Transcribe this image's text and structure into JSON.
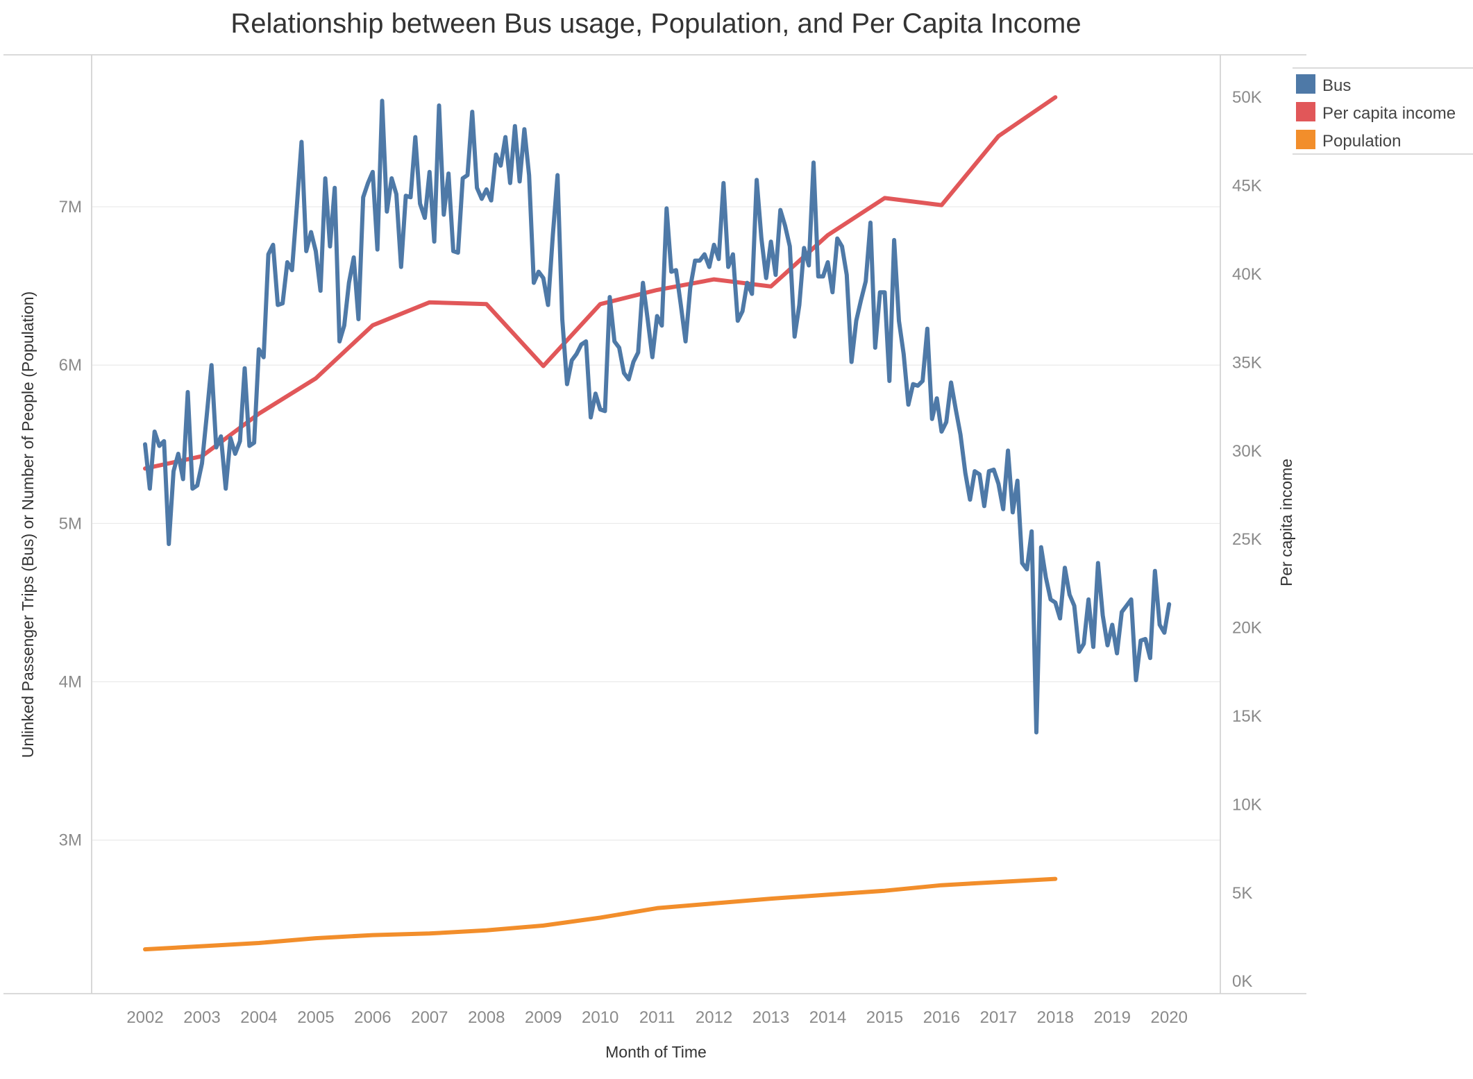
{
  "chart_data": {
    "type": "line",
    "title": "Relationship between Bus usage, Population, and Per Capita Income",
    "xlabel": "Month of Time",
    "ylabel": "Unlinked Passenger Trips (Bus) or Number of People (Population)",
    "ylabel_right": "Per capita income",
    "x_ticks": [
      "2002",
      "2003",
      "2004",
      "2005",
      "2006",
      "2007",
      "2008",
      "2009",
      "2010",
      "2011",
      "2012",
      "2013",
      "2014",
      "2015",
      "2016",
      "2017",
      "2018",
      "2019",
      "2020"
    ],
    "y_left_ticks": [
      {
        "value": 3000000,
        "label": "3M"
      },
      {
        "value": 4000000,
        "label": "4M"
      },
      {
        "value": 5000000,
        "label": "5M"
      },
      {
        "value": 6000000,
        "label": "6M"
      },
      {
        "value": 7000000,
        "label": "7M"
      }
    ],
    "y_right_ticks": [
      {
        "value": 0,
        "label": "0K"
      },
      {
        "value": 5000,
        "label": "5K"
      },
      {
        "value": 10000,
        "label": "10K"
      },
      {
        "value": 15000,
        "label": "15K"
      },
      {
        "value": 20000,
        "label": "20K"
      },
      {
        "value": 25000,
        "label": "25K"
      },
      {
        "value": 30000,
        "label": "30K"
      },
      {
        "value": 35000,
        "label": "35K"
      },
      {
        "value": 40000,
        "label": "40K"
      },
      {
        "value": 45000,
        "label": "45K"
      },
      {
        "value": 50000,
        "label": "50K"
      }
    ],
    "x_range": [
      2001.06,
      2020.9
    ],
    "y_left_range": [
      2030000,
      7960000
    ],
    "y_right_range": [
      -700,
      52400
    ],
    "grid": true,
    "legend_position": "top-right",
    "series": [
      {
        "name": "Bus",
        "axis": "left",
        "color": "#4e79a7",
        "x": [
          2002.0,
          2002.083,
          2002.167,
          2002.25,
          2002.333,
          2002.417,
          2002.5,
          2002.583,
          2002.667,
          2002.75,
          2002.833,
          2002.917,
          2003.0,
          2003.083,
          2003.167,
          2003.25,
          2003.333,
          2003.417,
          2003.5,
          2003.583,
          2003.667,
          2003.75,
          2003.833,
          2003.917,
          2004.0,
          2004.083,
          2004.167,
          2004.25,
          2004.333,
          2004.417,
          2004.5,
          2004.583,
          2004.667,
          2004.75,
          2004.833,
          2004.917,
          2005.0,
          2005.083,
          2005.167,
          2005.25,
          2005.333,
          2005.417,
          2005.5,
          2005.583,
          2005.667,
          2005.75,
          2005.833,
          2005.917,
          2006.0,
          2006.083,
          2006.167,
          2006.25,
          2006.333,
          2006.417,
          2006.5,
          2006.583,
          2006.667,
          2006.75,
          2006.833,
          2006.917,
          2007.0,
          2007.083,
          2007.167,
          2007.25,
          2007.333,
          2007.417,
          2007.5,
          2007.583,
          2007.667,
          2007.75,
          2007.833,
          2007.917,
          2008.0,
          2008.083,
          2008.167,
          2008.25,
          2008.333,
          2008.417,
          2008.5,
          2008.583,
          2008.667,
          2008.75,
          2008.833,
          2008.917,
          2009.0,
          2009.083,
          2009.167,
          2009.25,
          2009.333,
          2009.417,
          2009.5,
          2009.583,
          2009.667,
          2009.75,
          2009.833,
          2009.917,
          2010.0,
          2010.083,
          2010.167,
          2010.25,
          2010.333,
          2010.417,
          2010.5,
          2010.583,
          2010.667,
          2010.75,
          2010.833,
          2010.917,
          2011.0,
          2011.083,
          2011.167,
          2011.25,
          2011.333,
          2011.417,
          2011.5,
          2011.583,
          2011.667,
          2011.75,
          2011.833,
          2011.917,
          2012.0,
          2012.083,
          2012.167,
          2012.25,
          2012.333,
          2012.417,
          2012.5,
          2012.583,
          2012.667,
          2012.75,
          2012.833,
          2012.917,
          2013.0,
          2013.083,
          2013.167,
          2013.25,
          2013.333,
          2013.417,
          2013.5,
          2013.583,
          2013.667,
          2013.75,
          2013.833,
          2013.917,
          2014.0,
          2014.083,
          2014.167,
          2014.25,
          2014.333,
          2014.417,
          2014.5,
          2014.583,
          2014.667,
          2014.75,
          2014.833,
          2014.917,
          2015.0,
          2015.083,
          2015.167,
          2015.25,
          2015.333,
          2015.417,
          2015.5,
          2015.583,
          2015.667,
          2015.75,
          2015.833,
          2015.917,
          2016.0,
          2016.083,
          2016.167,
          2016.25,
          2016.333,
          2016.417,
          2016.5,
          2016.583,
          2016.667,
          2016.75,
          2016.833,
          2016.917,
          2017.0,
          2017.083,
          2017.167,
          2017.25,
          2017.333,
          2017.417,
          2017.5,
          2017.583,
          2017.667,
          2017.75,
          2017.833,
          2017.917,
          2018.0,
          2018.083,
          2018.167,
          2018.25,
          2018.333,
          2018.417,
          2018.5,
          2018.583,
          2018.667,
          2018.75,
          2018.833,
          2018.917,
          2019.0,
          2019.083,
          2019.167,
          2019.25,
          2019.333,
          2019.417,
          2019.5,
          2019.583,
          2019.667,
          2019.75,
          2019.833,
          2019.917,
          2020.0
        ],
        "values": [
          5500000,
          5220000,
          5580000,
          5490000,
          5520000,
          4870000,
          5330000,
          5440000,
          5280000,
          5830000,
          5220000,
          5240000,
          5380000,
          5680000,
          6000000,
          5480000,
          5550000,
          5220000,
          5540000,
          5440000,
          5520000,
          5980000,
          5490000,
          5510000,
          6100000,
          6050000,
          6700000,
          6760000,
          6380000,
          6390000,
          6650000,
          6600000,
          7000000,
          7410000,
          6720000,
          6840000,
          6720000,
          6470000,
          7180000,
          6750000,
          7120000,
          6150000,
          6250000,
          6520000,
          6680000,
          6290000,
          7060000,
          7150000,
          7220000,
          6730000,
          7670000,
          6970000,
          7180000,
          7080000,
          6620000,
          7070000,
          7060000,
          7440000,
          7020000,
          6930000,
          7220000,
          6780000,
          7640000,
          6950000,
          7210000,
          6720000,
          6710000,
          7180000,
          7200000,
          7600000,
          7120000,
          7050000,
          7110000,
          7040000,
          7330000,
          7260000,
          7440000,
          7150000,
          7510000,
          7160000,
          7490000,
          7200000,
          6520000,
          6590000,
          6550000,
          6380000,
          6820000,
          7200000,
          6290000,
          5880000,
          6030000,
          6070000,
          6130000,
          6150000,
          5670000,
          5820000,
          5720000,
          5710000,
          6430000,
          6150000,
          6110000,
          5950000,
          5910000,
          6020000,
          6080000,
          6520000,
          6290000,
          6050000,
          6310000,
          6250000,
          6990000,
          6590000,
          6600000,
          6380000,
          6150000,
          6490000,
          6660000,
          6660000,
          6700000,
          6620000,
          6760000,
          6670000,
          7150000,
          6620000,
          6700000,
          6280000,
          6340000,
          6520000,
          6450000,
          7170000,
          6800000,
          6550000,
          6780000,
          6570000,
          6980000,
          6880000,
          6750000,
          6180000,
          6380000,
          6740000,
          6630000,
          7280000,
          6560000,
          6560000,
          6650000,
          6460000,
          6800000,
          6750000,
          6570000,
          6020000,
          6280000,
          6410000,
          6530000,
          6900000,
          6110000,
          6460000,
          6460000,
          5900000,
          6790000,
          6280000,
          6070000,
          5750000,
          5880000,
          5870000,
          5900000,
          6230000,
          5660000,
          5790000,
          5580000,
          5640000,
          5890000,
          5720000,
          5560000,
          5320000,
          5150000,
          5330000,
          5310000,
          5110000,
          5330000,
          5340000,
          5250000,
          5090000,
          5460000,
          5070000,
          5270000,
          4750000,
          4710000,
          4950000,
          3680000,
          4850000,
          4660000,
          4520000,
          4500000,
          4400000,
          4720000,
          4550000,
          4480000,
          4190000,
          4240000,
          4520000,
          4220000,
          4750000,
          4420000,
          4230000,
          4360000,
          4180000,
          4440000,
          4480000,
          4520000,
          4010000,
          4260000,
          4270000,
          4150000,
          4700000,
          4360000,
          4310000,
          4490000
        ]
      },
      {
        "name": "Per capita income",
        "axis": "right",
        "color": "#e15759",
        "x": [
          2002,
          2003,
          2004,
          2005,
          2006,
          2007,
          2008,
          2009,
          2010,
          2011,
          2012,
          2013,
          2014,
          2015,
          2016,
          2017,
          2018
        ],
        "values": [
          29000,
          29700,
          32100,
          34100,
          37100,
          38400,
          38300,
          34800,
          38300,
          39100,
          39700,
          39300,
          42200,
          44300,
          43900,
          47800,
          50000
        ]
      },
      {
        "name": "Population",
        "axis": "left",
        "color": "#f28e2b",
        "x": [
          2002,
          2003,
          2004,
          2005,
          2006,
          2007,
          2008,
          2009,
          2010,
          2011,
          2012,
          2013,
          2014,
          2015,
          2016,
          2017,
          2018
        ],
        "values": [
          2310000,
          2330000,
          2350000,
          2380000,
          2400000,
          2410000,
          2430000,
          2460000,
          2510000,
          2570000,
          2600000,
          2630000,
          2655000,
          2680000,
          2715000,
          2735000,
          2755000
        ]
      }
    ]
  }
}
